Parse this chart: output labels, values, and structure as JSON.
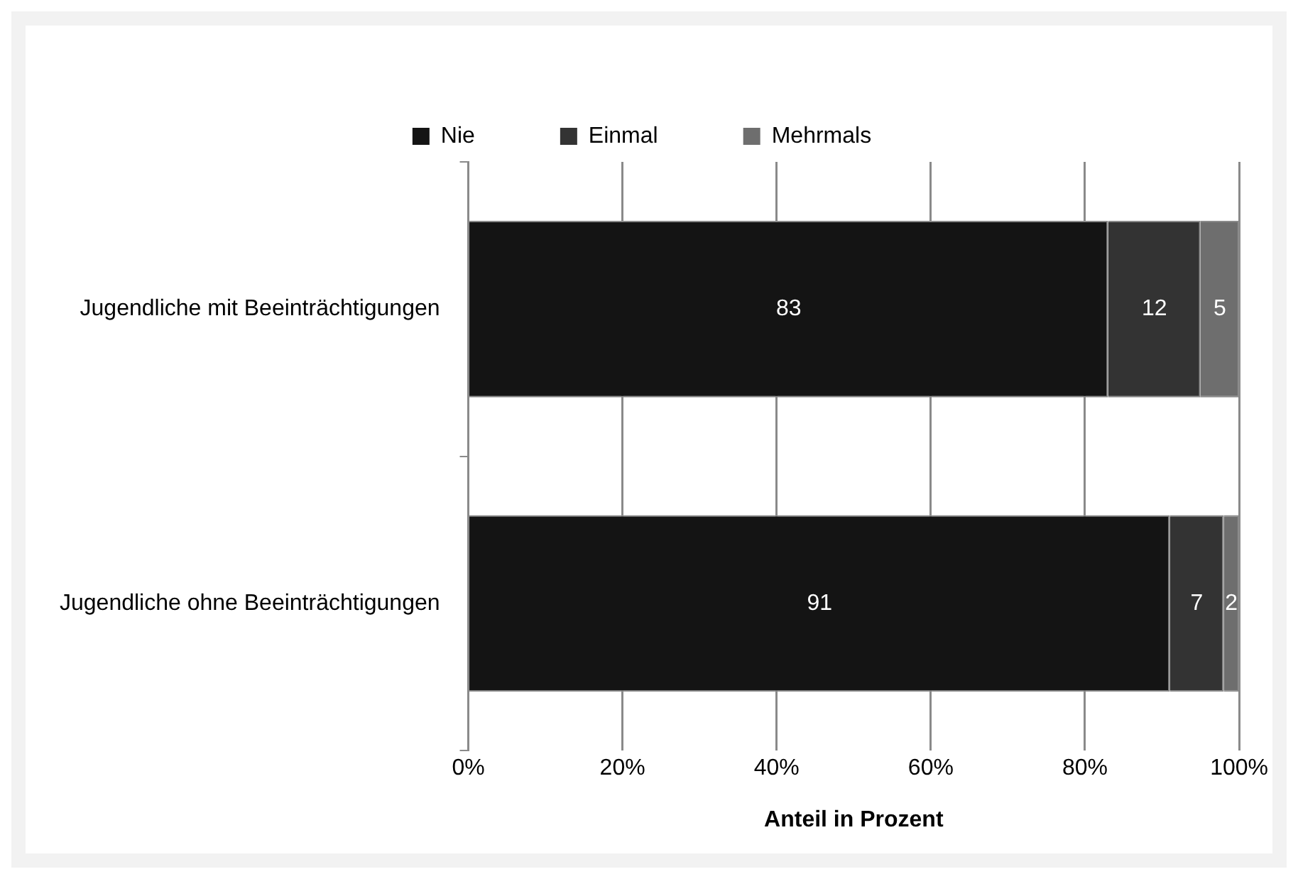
{
  "chart_data": {
    "type": "bar",
    "orientation": "horizontal",
    "stacked": true,
    "categories": [
      "Jugendliche mit Beeinträchtigungen",
      "Jugendliche ohne Beeinträchtigungen"
    ],
    "series": [
      {
        "name": "Nie",
        "color": "#141414",
        "values": [
          83,
          91
        ]
      },
      {
        "name": "Einmal",
        "color": "#333333",
        "values": [
          12,
          7
        ]
      },
      {
        "name": "Mehrmals",
        "color": "#6e6e6e",
        "values": [
          5,
          2
        ]
      }
    ],
    "xlabel": "Anteil in Prozent",
    "xlim": [
      0,
      100
    ],
    "xticks": [
      {
        "value": 0,
        "label": "0%"
      },
      {
        "value": 20,
        "label": "20%"
      },
      {
        "value": 40,
        "label": "40%"
      },
      {
        "value": 60,
        "label": "60%"
      },
      {
        "value": 80,
        "label": "80%"
      },
      {
        "value": 100,
        "label": "100%"
      }
    ],
    "grid": "x",
    "legend": "top",
    "data_labels": true
  }
}
